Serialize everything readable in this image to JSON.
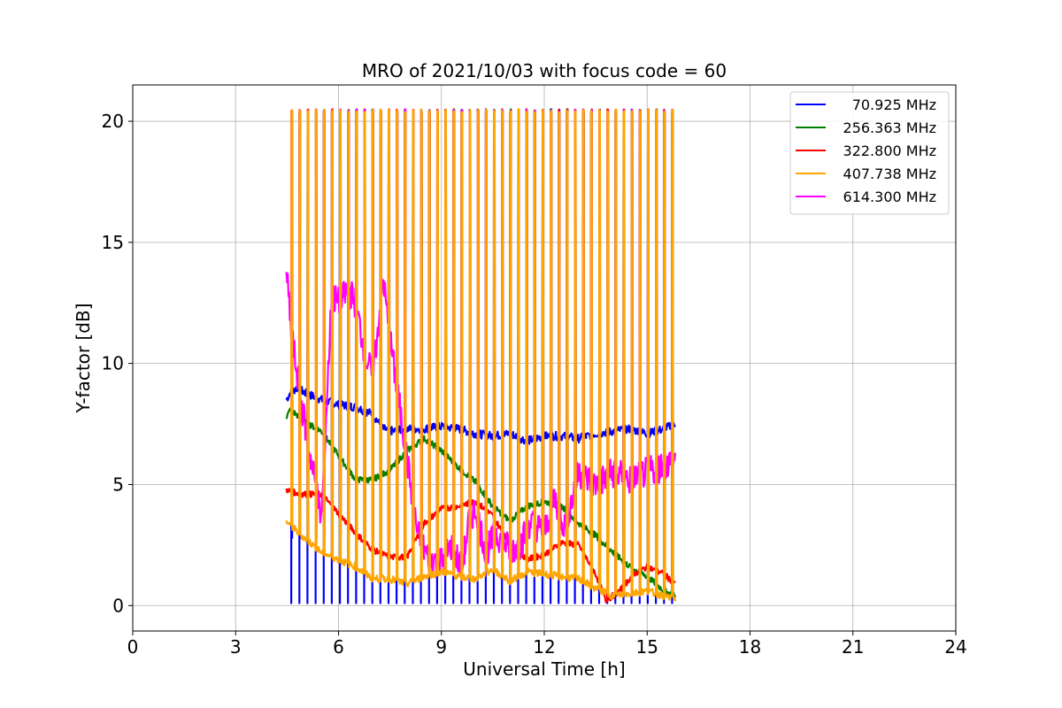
{
  "chart_data": {
    "type": "line",
    "title": "MRO of 2021/10/03 with focus code = 60",
    "xlabel": "Universal Time [h]",
    "ylabel": "Y-factor [dB]",
    "xlim": [
      0,
      24
    ],
    "ylim": [
      -1.05,
      21.5
    ],
    "x_ticks": [
      0,
      3,
      6,
      9,
      12,
      15,
      18,
      21,
      24
    ],
    "y_ticks": [
      0,
      5,
      10,
      15,
      20
    ],
    "grid": true,
    "legend_position": "top-right",
    "calibration": {
      "x_start": 4.48,
      "x_end": 15.82,
      "cycles": 48,
      "peak_level": 20.5
    },
    "series": [
      {
        "name": "70.925 MHz",
        "color": "#0000ff",
        "trace_x": [
          4.48,
          4.6,
          4.8,
          5.0,
          5.5,
          6.0,
          6.5,
          7.0,
          7.3,
          7.6,
          8.0,
          8.5,
          9.0,
          9.5,
          10.0,
          10.5,
          11.0,
          11.5,
          12.0,
          12.5,
          13.0,
          13.5,
          14.0,
          14.5,
          15.0,
          15.5,
          15.8
        ],
        "trace_y": [
          8.5,
          8.8,
          9.0,
          8.8,
          8.5,
          8.3,
          8.2,
          7.9,
          7.3,
          7.2,
          7.3,
          7.3,
          7.4,
          7.3,
          7.1,
          7.0,
          7.1,
          6.8,
          7.0,
          7.0,
          6.9,
          7.1,
          7.2,
          7.3,
          7.1,
          7.3,
          7.5
        ],
        "band": 0.35,
        "dip": 0.1,
        "spike": 2.8
      },
      {
        "name": "256.363 MHz",
        "color": "#008000",
        "trace_x": [
          4.48,
          4.6,
          5.0,
          5.5,
          6.0,
          6.5,
          7.0,
          7.5,
          8.0,
          8.5,
          9.0,
          9.5,
          10.0,
          10.5,
          11.0,
          11.5,
          12.0,
          12.5,
          13.0,
          13.5,
          14.0,
          14.5,
          15.0,
          15.5,
          15.8
        ],
        "trace_y": [
          7.8,
          8.1,
          7.6,
          7.2,
          6.2,
          5.2,
          5.2,
          5.6,
          6.4,
          6.9,
          6.4,
          5.7,
          5.1,
          4.1,
          3.5,
          4.1,
          4.3,
          4.1,
          3.4,
          2.9,
          2.2,
          1.6,
          1.2,
          0.6,
          0.4
        ],
        "band": 0.25,
        "dip": null,
        "spike": null
      },
      {
        "name": "322.800 MHz",
        "color": "#ff0000",
        "trace_x": [
          4.48,
          4.6,
          5.0,
          5.5,
          6.0,
          6.5,
          7.0,
          7.5,
          8.0,
          8.5,
          9.0,
          9.5,
          10.0,
          10.5,
          11.0,
          11.5,
          12.0,
          12.5,
          13.0,
          13.5,
          13.8,
          14.2,
          14.6,
          15.0,
          15.5,
          15.8
        ],
        "trace_y": [
          4.8,
          4.7,
          4.6,
          4.6,
          3.8,
          3.0,
          2.3,
          2.0,
          2.0,
          3.4,
          4.0,
          4.1,
          4.3,
          3.7,
          2.5,
          1.9,
          2.1,
          2.6,
          2.5,
          1.3,
          0.2,
          0.6,
          1.3,
          1.6,
          1.3,
          0.9
        ],
        "band": 0.25,
        "dip": null,
        "spike": null
      },
      {
        "name": "407.738 MHz",
        "color": "#ffa500",
        "trace_x": [
          4.48,
          4.6,
          5.0,
          5.5,
          6.0,
          6.5,
          7.0,
          7.5,
          8.0,
          8.5,
          9.0,
          9.5,
          10.0,
          10.5,
          11.0,
          11.5,
          12.0,
          12.5,
          13.0,
          13.5,
          14.0,
          14.5,
          15.0,
          15.5,
          15.8
        ],
        "trace_y": [
          3.5,
          3.3,
          2.8,
          2.2,
          1.9,
          1.6,
          1.1,
          1.1,
          0.9,
          1.2,
          1.4,
          1.2,
          1.1,
          1.5,
          1.0,
          1.4,
          1.3,
          1.2,
          1.1,
          0.7,
          0.4,
          0.5,
          0.6,
          0.4,
          0.3
        ],
        "band": 0.3,
        "dip": null,
        "spike": null
      },
      {
        "name": "614.300 MHz",
        "color": "#ff00ff",
        "trace_x": [
          4.48,
          4.6,
          4.9,
          5.2,
          5.5,
          5.8,
          6.0,
          6.3,
          6.5,
          6.8,
          7.0,
          7.3,
          7.5,
          7.8,
          8.0,
          8.3,
          8.6,
          9.0,
          9.3,
          9.6,
          9.8,
          10.0,
          10.3,
          10.6,
          11.0,
          11.3,
          11.6,
          12.0,
          12.3,
          12.6,
          13.0,
          13.5,
          14.0,
          14.5,
          15.0,
          15.5,
          15.8
        ],
        "trace_y": [
          14.0,
          11.5,
          8.5,
          6.0,
          3.5,
          12.8,
          12.5,
          13.0,
          12.5,
          10.2,
          9.5,
          13.5,
          11.0,
          8.0,
          6.0,
          3.0,
          2.0,
          1.8,
          2.5,
          1.5,
          3.5,
          4.0,
          2.2,
          3.0,
          2.3,
          2.5,
          3.5,
          3.0,
          4.5,
          3.2,
          5.5,
          5.0,
          5.5,
          5.2,
          5.5,
          5.8,
          6.0
        ],
        "band": 1.3,
        "dip": null,
        "spike": 10.7
      }
    ]
  }
}
